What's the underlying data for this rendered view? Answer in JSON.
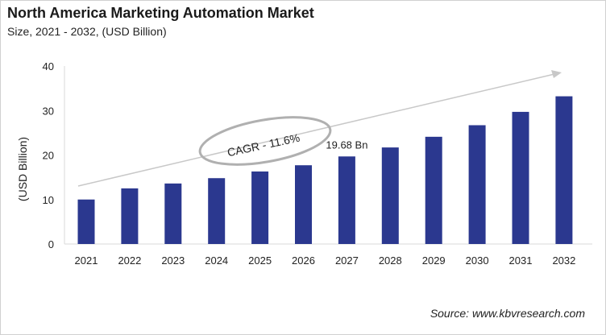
{
  "title": "North America Marketing Automation Market",
  "subtitle": "Size, 2021 - 2032, (USD Billion)",
  "source": "Source: www.kbvresearch.com",
  "colors": {
    "bar": "#2b388f",
    "trend_arrow": "#c8c8c8",
    "ellipse": "#b0b0b0"
  },
  "chart_data": {
    "type": "bar",
    "categories": [
      "2021",
      "2022",
      "2023",
      "2024",
      "2025",
      "2026",
      "2027",
      "2028",
      "2029",
      "2030",
      "2031",
      "2032"
    ],
    "values": [
      10.0,
      12.5,
      13.6,
      14.8,
      16.3,
      17.7,
      19.68,
      21.7,
      24.1,
      26.7,
      29.7,
      33.2
    ],
    "ylabel": "(USD Billion)",
    "xlabel": "",
    "ylim": [
      0,
      40
    ],
    "yticks": [
      0,
      10,
      20,
      30,
      40
    ],
    "grid": false,
    "annotations": [
      {
        "text": "19.68 Bn",
        "category": "2027"
      },
      {
        "text": "CAGR - 11.6%",
        "shape": "ellipse"
      }
    ]
  }
}
